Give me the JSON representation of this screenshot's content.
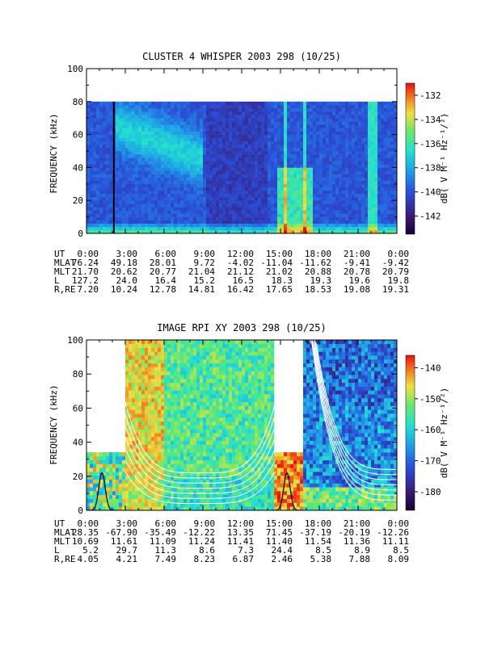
{
  "chart_data": [
    {
      "type": "heatmap",
      "title": "CLUSTER 4 WHISPER 2003 298 (10/25)",
      "ylabel": "FREQUENCY (kHz)",
      "ylim": [
        0,
        100
      ],
      "yticks": [
        "0",
        "20",
        "40",
        "60",
        "80",
        "100"
      ],
      "xlim_hours": [
        0,
        24
      ],
      "data_upper_khz": 80,
      "colorbar": {
        "label": "dB( V M⁻¹ Hz⁻¹/²)",
        "range": [
          -143.5,
          -131
        ],
        "ticks": [
          "-132",
          "-134",
          "-136",
          "-138",
          "-140",
          "-142"
        ],
        "tick_values": [
          -132,
          -134,
          -136,
          -138,
          -140,
          -142
        ]
      },
      "ephemeris": {
        "row_labels": [
          "UT",
          "MLAT",
          "MLT",
          "L",
          "R,RE"
        ],
        "columns": [
          [
            "0:00",
            "76.24",
            "21.70",
            "127.2",
            "7.20"
          ],
          [
            "3:00",
            "49.18",
            "20.62",
            "24.0",
            "10.24"
          ],
          [
            "6:00",
            "28.01",
            "20.77",
            "16.4",
            "12.78"
          ],
          [
            "9:00",
            "9.72",
            "21.04",
            "15.2",
            "14.81"
          ],
          [
            "12:00",
            "-4.02",
            "21.12",
            "16.5",
            "16.42"
          ],
          [
            "15:00",
            "-11.04",
            "21.02",
            "18.3",
            "17.65"
          ],
          [
            "18:00",
            "-11.62",
            "20.88",
            "19.3",
            "18.53"
          ],
          [
            "21:00",
            "-9.41",
            "20.78",
            "19.6",
            "19.08"
          ],
          [
            "0:00",
            "-9.42",
            "20.79",
            "19.8",
            "19.31"
          ]
        ]
      }
    },
    {
      "type": "heatmap",
      "title": "IMAGE RPI XY 2003 298 (10/25)",
      "ylabel": "FREQUENCY (kHz)",
      "ylim": [
        0,
        100
      ],
      "yticks": [
        "0",
        "20",
        "40",
        "60",
        "80",
        "100"
      ],
      "xlim_hours": [
        0,
        24
      ],
      "data_gaps_hours": [
        [
          14.6,
          16.7
        ]
      ],
      "low_band_only_hours": [
        [
          0,
          3.0
        ]
      ],
      "low_band_khz": 32,
      "colorbar": {
        "label": "dB( V M⁻¹ Hz⁻¹/²)",
        "range": [
          -186,
          -136
        ],
        "ticks": [
          "-140",
          "-150",
          "-160",
          "-170",
          "-180"
        ],
        "tick_values": [
          -140,
          -150,
          -160,
          -170,
          -180
        ]
      },
      "ephemeris": {
        "row_labels": [
          "UT",
          "MLAT",
          "MLT",
          "L",
          "R,RE"
        ],
        "columns": [
          [
            "0:00",
            "28.35",
            "10.69",
            "5.2",
            "4.05"
          ],
          [
            "3:00",
            "-67.90",
            "11.61",
            "29.7",
            "4.21"
          ],
          [
            "6:00",
            "-35.49",
            "11.09",
            "11.3",
            "7.49"
          ],
          [
            "9:00",
            "-12.22",
            "11.24",
            "8.6",
            "8.23"
          ],
          [
            "12:00",
            "13.35",
            "11.41",
            "7.3",
            "6.87"
          ],
          [
            "15:00",
            "71.45",
            "11.40",
            "24.4",
            "2.46"
          ],
          [
            "18:00",
            "-37.19",
            "11.54",
            "8.5",
            "5.38"
          ],
          [
            "21:00",
            "-20.19",
            "11.36",
            "8.9",
            "7.88"
          ],
          [
            "0:00",
            "-12.26",
            "11.11",
            "8.5",
            "8.09"
          ]
        ]
      }
    }
  ],
  "colors": {
    "colormap": [
      "#1a0033",
      "#3a1a78",
      "#2a4fd8",
      "#1fa0e8",
      "#22e0d0",
      "#6be86a",
      "#f0e040",
      "#f08020",
      "#e81010"
    ],
    "black_trace": "#000000",
    "white_trace": "#ffffff"
  }
}
